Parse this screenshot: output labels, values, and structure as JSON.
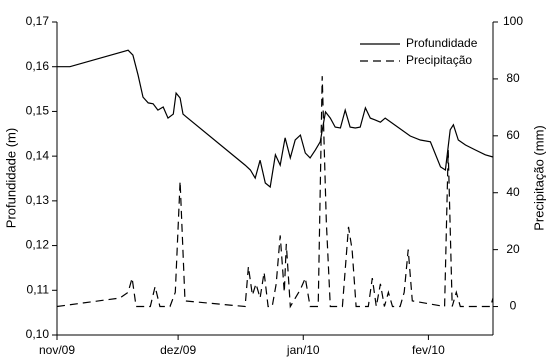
{
  "chart_data": {
    "type": "line",
    "xlabel": null,
    "ylabel": "Profundidade (m)",
    "y2label": "Precipitação (mm)",
    "xlim": [
      0,
      108
    ],
    "xticks": [
      {
        "value": 0,
        "label": "nov/09"
      },
      {
        "value": 30,
        "label": "dez/09"
      },
      {
        "value": 61,
        "label": "jan/10"
      },
      {
        "value": 92,
        "label": "fev/10"
      }
    ],
    "ylim": [
      0.1,
      0.17
    ],
    "yticks": [
      {
        "value": 0.1,
        "label": "0,10"
      },
      {
        "value": 0.11,
        "label": "0,11"
      },
      {
        "value": 0.12,
        "label": "0,12"
      },
      {
        "value": 0.13,
        "label": "0,13"
      },
      {
        "value": 0.14,
        "label": "0,14"
      },
      {
        "value": 0.15,
        "label": "0,15"
      },
      {
        "value": 0.16,
        "label": "0,16"
      },
      {
        "value": 0.17,
        "label": "0,17"
      }
    ],
    "y2lim": [
      -10,
      100
    ],
    "y2ticks": [
      0,
      20,
      40,
      60,
      80,
      100
    ],
    "legend": "upper right",
    "series": [
      {
        "name": "Profundidade",
        "color": "#000000",
        "linestyle": "solid",
        "x": [
          0,
          3.2,
          17.6,
          18.8,
          20.1,
          21.3,
          22.6,
          23.8,
          25.0,
          26.3,
          27.5,
          28.8,
          29.5,
          30.5,
          31.2,
          32.0,
          46.6,
          47.9,
          49.1,
          50.3,
          51.6,
          52.8,
          54.1,
          55.3,
          56.5,
          57.8,
          59.0,
          60.3,
          61.5,
          62.7,
          64.0,
          65.2,
          66.5,
          67.7,
          68.9,
          70.2,
          71.4,
          72.6,
          73.9,
          75.1,
          76.4,
          77.6,
          78.8,
          80.1,
          81.3,
          87.5,
          90.0,
          92.5,
          95.0,
          96.2,
          97.4,
          98.2,
          99.4,
          101.2,
          103.6,
          106.1,
          108
        ],
        "values": [
          0.16,
          0.16,
          0.1637,
          0.1626,
          0.1581,
          0.1532,
          0.1519,
          0.1517,
          0.1503,
          0.151,
          0.1485,
          0.1494,
          0.1541,
          0.153,
          0.1494,
          0.1488,
          0.138,
          0.1369,
          0.1351,
          0.1391,
          0.134,
          0.1331,
          0.1403,
          0.138,
          0.1441,
          0.1396,
          0.1436,
          0.1447,
          0.1407,
          0.1396,
          0.1414,
          0.1432,
          0.1499,
          0.1485,
          0.1465,
          0.1463,
          0.1503,
          0.1465,
          0.1463,
          0.1465,
          0.1508,
          0.1485,
          0.1481,
          0.1476,
          0.1485,
          0.1445,
          0.1436,
          0.1432,
          0.1376,
          0.1369,
          0.1459,
          0.147,
          0.1436,
          0.1425,
          0.1414,
          0.1403,
          0.1398
        ]
      },
      {
        "name": "Precipitação",
        "color": "#000000",
        "linestyle": "dashed",
        "axis": "y2",
        "x": [
          0,
          15.6,
          17.6,
          18.6,
          19.6,
          23.1,
          24.3,
          25.5,
          28.0,
          29.3,
          30.5,
          31.7,
          46.6,
          47.4,
          48.4,
          49.3,
          50.3,
          51.3,
          52.3,
          53.3,
          54.3,
          55.3,
          56.3,
          56.8,
          57.8,
          60.3,
          61.5,
          62.7,
          64.7,
          65.7,
          66.7,
          67.7,
          70.7,
          72.2,
          73.1,
          74.1,
          77.1,
          78.1,
          79.1,
          80.1,
          81.1,
          82.1,
          83.1,
          85.0,
          86.0,
          87.0,
          88.0,
          96.0,
          96.9,
          97.9,
          98.9,
          99.9,
          107.4,
          108
        ],
        "values": [
          0,
          3,
          5,
          10,
          0,
          0,
          7,
          0,
          0,
          5,
          44,
          2,
          0,
          14,
          4,
          8,
          3,
          12,
          0,
          0,
          8,
          25,
          5,
          22,
          0,
          6,
          10,
          0,
          0,
          81,
          30,
          0,
          0,
          28,
          20,
          0,
          0,
          10,
          0,
          8,
          0,
          5,
          0,
          0,
          5,
          20,
          2,
          0,
          55,
          0,
          5,
          0,
          0,
          3
        ]
      }
    ]
  }
}
